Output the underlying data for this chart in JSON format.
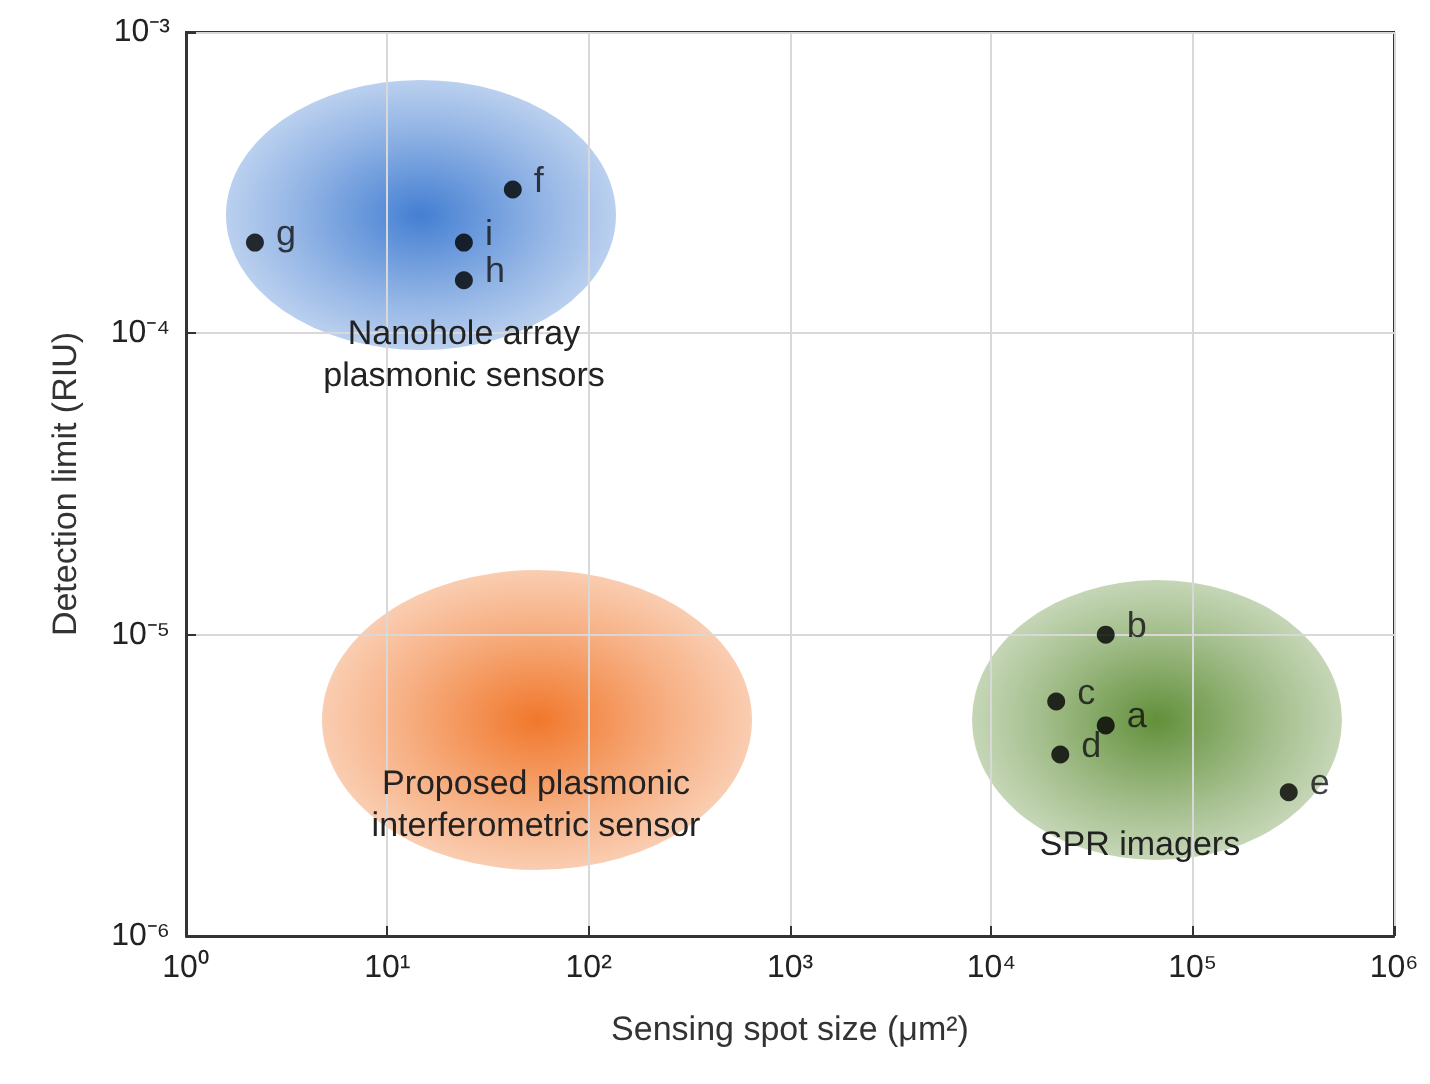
{
  "chart_data": {
    "type": "scatter",
    "xlabel": "Sensing spot size (μm²)",
    "ylabel": "Detection limit (RIU)",
    "log": "xy",
    "grid": true,
    "marker": "circle",
    "xlim": [
      1,
      1000000
    ],
    "ylim": [
      1e-06,
      0.001
    ],
    "xticks": [
      {
        "value": 1,
        "label": "10⁰"
      },
      {
        "value": 10,
        "label": "10¹"
      },
      {
        "value": 100,
        "label": "10²"
      },
      {
        "value": 1000,
        "label": "10³"
      },
      {
        "value": 10000,
        "label": "10⁴"
      },
      {
        "value": 100000,
        "label": "10⁵"
      },
      {
        "value": 1000000,
        "label": "10⁶"
      }
    ],
    "yticks": [
      {
        "value": 1e-06,
        "label": "10⁻⁶"
      },
      {
        "value": 1e-05,
        "label": "10⁻⁵"
      },
      {
        "value": 0.0001,
        "label": "10⁻⁴"
      },
      {
        "value": 0.001,
        "label": "10⁻³"
      }
    ],
    "series": [
      {
        "color": "#000000",
        "x": [
          2.2,
          24,
          24,
          42,
          37000,
          21000,
          37000,
          22000,
          300000
        ],
        "values": [
          0.0002,
          0.0002,
          0.00015,
          0.0003,
          1e-05,
          6e-06,
          5e-06,
          4e-06,
          3e-06
        ],
        "value_labels": [
          "g",
          "i",
          "h",
          "f",
          "b",
          "c",
          "a",
          "d",
          "e"
        ]
      }
    ],
    "annotations": [
      "Nanohole array\nplasmonic sensors",
      "Proposed plasmonic\ninterferometric sensor",
      "SPR imagers"
    ]
  }
}
